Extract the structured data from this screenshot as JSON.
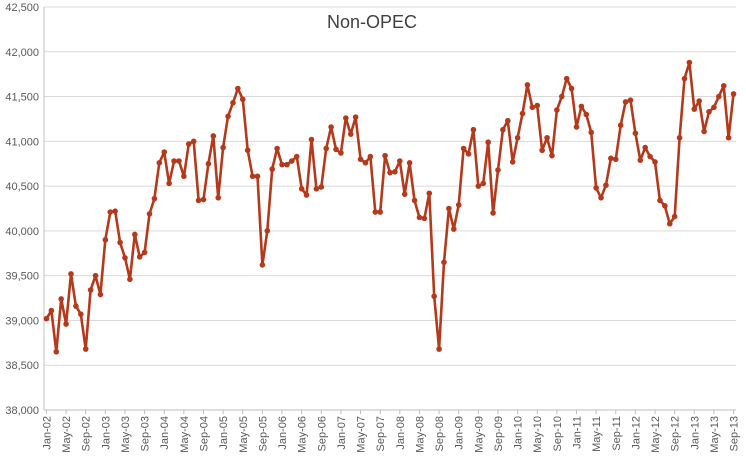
{
  "chart_data": {
    "type": "line",
    "title": "Non-OPEC",
    "xlabel": "",
    "ylabel": "",
    "ylim": [
      38000,
      42500
    ],
    "y_ticks": [
      "38,000",
      "38,500",
      "39,000",
      "39,500",
      "40,000",
      "40,500",
      "41,000",
      "41,500",
      "42,000",
      "42,500"
    ],
    "y_tick_values": [
      38000,
      38500,
      39000,
      39500,
      40000,
      40500,
      41000,
      41500,
      42000,
      42500
    ],
    "x_tick_labels": [
      "Jan-02",
      "May-02",
      "Sep-02",
      "Jan-03",
      "May-03",
      "Sep-03",
      "Jan-04",
      "May-04",
      "Sep-04",
      "Jan-05",
      "May-05",
      "Sep-05",
      "Jan-06",
      "May-06",
      "Sep-06",
      "Jan-07",
      "May-07",
      "Sep-07",
      "Jan-08",
      "May-08",
      "Sep-08",
      "Jan-09",
      "May-09",
      "Sep-09",
      "Jan-10",
      "May-10",
      "Sep-10",
      "Jan-11",
      "May-11",
      "Sep-11",
      "Jan-12",
      "May-12",
      "Sep-12",
      "Jan-13",
      "May-13",
      "Sep-13"
    ],
    "grid": true,
    "legend": "none",
    "line_color": "#b5391b",
    "series": [
      {
        "values": [
          39020,
          39110,
          38650,
          39240,
          38960,
          39520,
          39160,
          39070,
          38680,
          39340,
          39500,
          39290,
          39900,
          40210,
          40220,
          39870,
          39700,
          39460,
          39960,
          39710,
          39760,
          40190,
          40360,
          40760,
          40880,
          40530,
          40780,
          40780,
          40610,
          40970,
          41000,
          40340,
          40350,
          40750,
          41060,
          40370,
          40930,
          41280,
          41430,
          41590,
          41470,
          40900,
          40610,
          40610,
          39620,
          40000,
          40690,
          40920,
          40740,
          40740,
          40780,
          40830,
          40470,
          40400,
          41020,
          40470,
          40490,
          40920,
          41160,
          40910,
          40870,
          41260,
          41080,
          41270,
          40800,
          40760,
          40830,
          40210,
          40210,
          40840,
          40650,
          40660,
          40780,
          40410,
          40760,
          40340,
          40150,
          40140,
          40420,
          39270,
          38680,
          39650,
          40250,
          40020,
          40290,
          40920,
          40860,
          41130,
          40500,
          40530,
          40990,
          40200,
          40680,
          41130,
          41230,
          40770,
          41040,
          41310,
          41630,
          41380,
          41400,
          40900,
          41040,
          40840,
          41350,
          41500,
          41700,
          41590,
          41160,
          41390,
          41300,
          41100,
          40480,
          40370,
          40510,
          40810,
          40800,
          41180,
          41440,
          41460,
          41090,
          40790,
          40930,
          40830,
          40770,
          40340,
          40280,
          40080,
          40160,
          41040,
          41700,
          41880,
          41360,
          41450,
          41110,
          41330,
          41380,
          41500,
          41620,
          41040,
          41530
        ]
      }
    ]
  }
}
